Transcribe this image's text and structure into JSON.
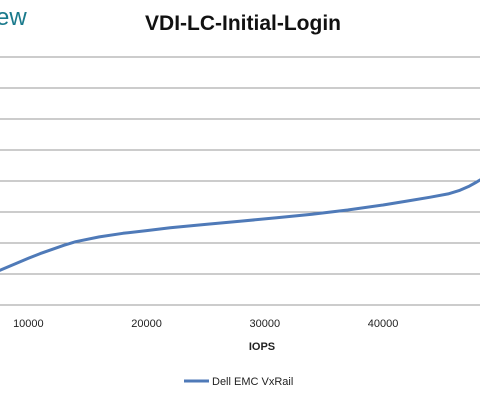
{
  "brand": {
    "text": "ew",
    "color": "#1a7a8c"
  },
  "chart_data": {
    "type": "line",
    "title": "VDI-LC-Initial-Login",
    "xlabel": "IOPS",
    "ylabel": "",
    "xlim": [
      7600,
      48200
    ],
    "xticks": [
      10000,
      20000,
      30000,
      40000
    ],
    "x_tick_labels": [
      "10000",
      "20000",
      "30000",
      "40000"
    ],
    "ylim": [
      0,
      9
    ],
    "grid": true,
    "legend_position": "bottom",
    "series": [
      {
        "name": "Dell EMC VxRail",
        "color": "#4f7ab8",
        "x": [
          7600,
          9000,
          10000,
          11000,
          12000,
          13000,
          14000,
          16000,
          18000,
          20000,
          22000,
          25000,
          28000,
          31000,
          34000,
          37000,
          40000,
          42000,
          44000,
          45500,
          46500,
          47300,
          47800,
          48200
        ],
        "y": [
          1.25,
          1.5,
          1.68,
          1.85,
          2.0,
          2.15,
          2.28,
          2.45,
          2.58,
          2.68,
          2.78,
          2.9,
          3.02,
          3.14,
          3.27,
          3.42,
          3.6,
          3.74,
          3.88,
          4.0,
          4.13,
          4.28,
          4.4,
          4.5
        ]
      }
    ]
  }
}
